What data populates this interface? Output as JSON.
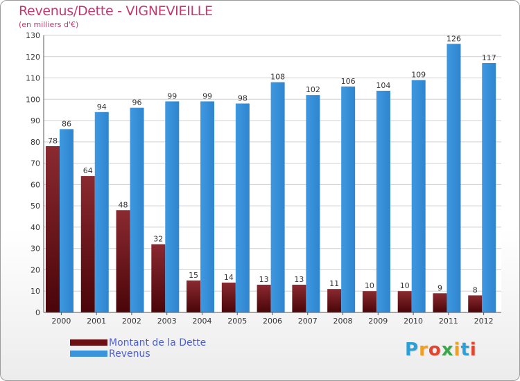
{
  "title": "Revenus/Dette - VIGNEVIEILLE",
  "subtitle": "(en milliers d'€)",
  "logo": {
    "letters": [
      "P",
      "r",
      "o",
      "x",
      "i",
      "t",
      "i"
    ],
    "colors": [
      "#2aa0d8",
      "#f0a020",
      "#e0452d",
      "#3aa84a",
      "#f0a020",
      "#2aa0d8",
      "#e0452d"
    ]
  },
  "legend": [
    {
      "label": "Montant de la Dette",
      "color": "#6b1014"
    },
    {
      "label": "Revenus",
      "color": "#3b93db"
    }
  ],
  "chart_data": {
    "type": "bar",
    "categories": [
      "2000",
      "2001",
      "2002",
      "2003",
      "2004",
      "2005",
      "2006",
      "2007",
      "2008",
      "2009",
      "2010",
      "2011",
      "2012"
    ],
    "series": [
      {
        "name": "Montant de la Dette",
        "values": [
          78,
          64,
          48,
          32,
          15,
          14,
          13,
          13,
          11,
          10,
          10,
          9,
          8
        ],
        "color": "#6b1014"
      },
      {
        "name": "Revenus",
        "values": [
          86,
          94,
          96,
          99,
          99,
          98,
          108,
          102,
          106,
          104,
          109,
          126,
          117
        ],
        "color": "#3b93db"
      }
    ],
    "title": "Revenus/Dette - VIGNEVIEILLE",
    "ylim": [
      0,
      130
    ],
    "yticks": [
      0,
      10,
      20,
      30,
      40,
      50,
      60,
      70,
      80,
      90,
      100,
      110,
      120,
      130
    ],
    "grid": true,
    "legend_position": "bottom-left"
  }
}
